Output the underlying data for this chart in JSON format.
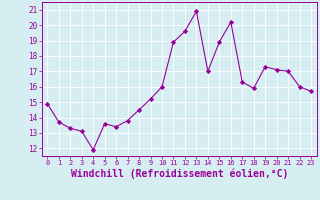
{
  "x": [
    0,
    1,
    2,
    3,
    4,
    5,
    6,
    7,
    8,
    9,
    10,
    11,
    12,
    13,
    14,
    15,
    16,
    17,
    18,
    19,
    20,
    21,
    22,
    23
  ],
  "y": [
    14.9,
    13.7,
    13.3,
    13.1,
    11.9,
    13.6,
    13.4,
    13.8,
    14.5,
    15.2,
    16.0,
    18.9,
    19.6,
    20.9,
    17.0,
    18.9,
    20.2,
    16.3,
    15.9,
    17.3,
    17.1,
    17.0,
    16.0,
    15.7
  ],
  "line_color": "#990099",
  "marker": "D",
  "marker_size": 2.2,
  "xlabel": "Windchill (Refroidissement éolien,°C)",
  "xlabel_fontsize": 7,
  "ylabel_ticks": [
    12,
    13,
    14,
    15,
    16,
    17,
    18,
    19,
    20,
    21
  ],
  "xtick_labels": [
    "0",
    "1",
    "2",
    "3",
    "4",
    "5",
    "6",
    "7",
    "8",
    "9",
    "10",
    "11",
    "12",
    "13",
    "14",
    "15",
    "16",
    "17",
    "18",
    "19",
    "20",
    "21",
    "22",
    "23"
  ],
  "ylim": [
    11.5,
    21.5
  ],
  "xlim": [
    -0.5,
    23.5
  ],
  "background_color": "#d6eef2",
  "grid_color": "#b8dde6",
  "tick_color": "#990099",
  "label_color": "#990099",
  "spine_color": "#990099"
}
